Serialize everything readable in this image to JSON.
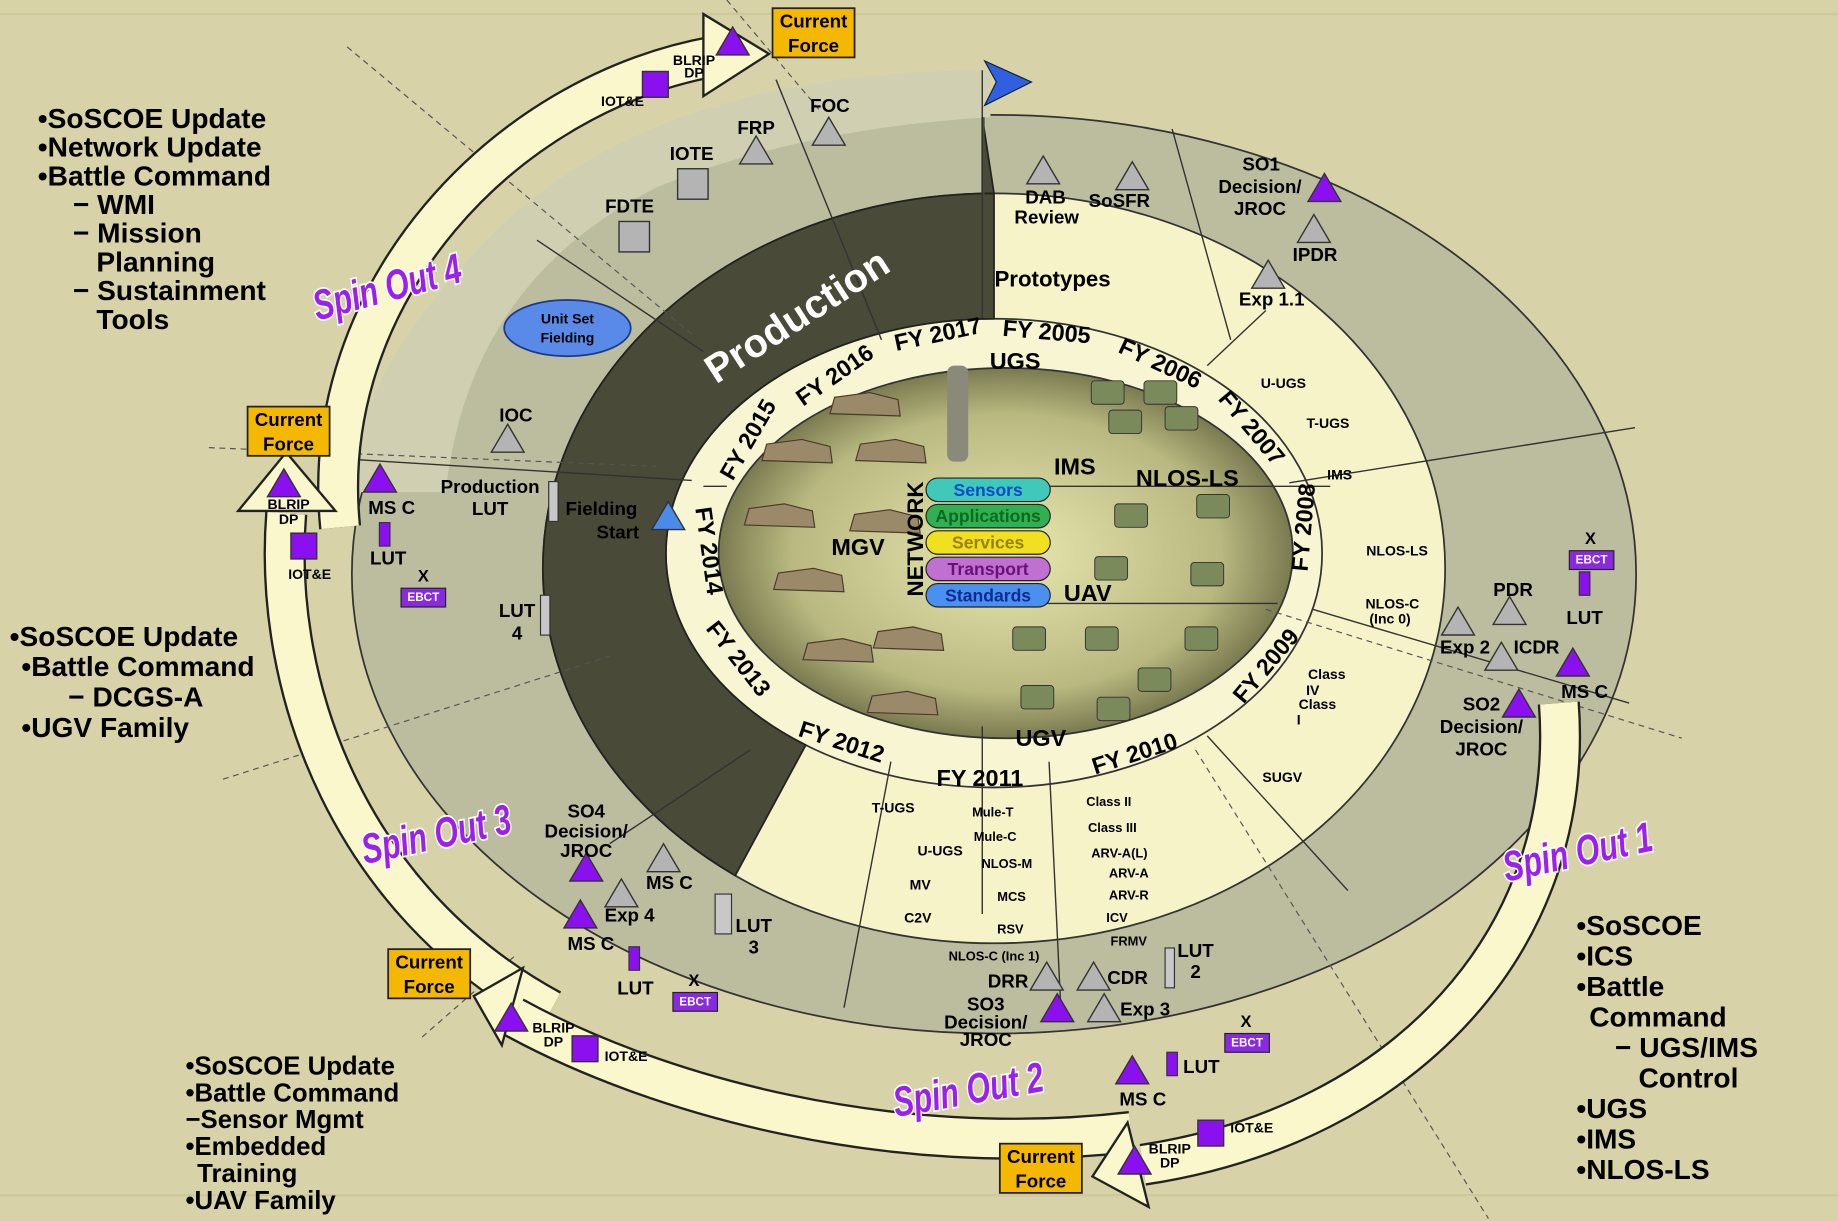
{
  "diagram": {
    "fiscal_years": [
      "FY 2005",
      "FY 2006",
      "FY 2007",
      "FY 2008",
      "FY 2009",
      "FY 2010",
      "FY 2011",
      "FY 2012",
      "FY 2013",
      "FY 2014",
      "FY 2015",
      "FY 2016",
      "FY 2017"
    ],
    "production": "Production",
    "prototypes": "Prototypes",
    "network": {
      "title": "NETWORK",
      "layers": [
        "Sensors",
        "Applications",
        "Services",
        "Transport",
        "Standards"
      ]
    },
    "quadrants": [
      "UGS",
      "IMS",
      "NLOS-LS",
      "MGV",
      "UAV",
      "UGV"
    ],
    "spin_outs": [
      "Spin Out 1",
      "Spin Out 2",
      "Spin Out 3",
      "Spin Out 4"
    ],
    "current_force_boxes": [
      [
        "Current",
        "Force"
      ],
      [
        "Current",
        "Force"
      ],
      [
        "Current",
        "Force"
      ],
      [
        "Current",
        "Force"
      ]
    ],
    "labels": [
      "FOC",
      "FRP",
      "IOTE",
      "FDTE",
      "IOC",
      "Production",
      "LUT",
      "Fielding",
      "Start",
      "LUT",
      "4",
      "MS C",
      "LUT",
      "EBCT",
      "BLRIP",
      "DP",
      "IOT&E",
      "BLRIP",
      "DP",
      "IOT&E",
      "DAB",
      "Review",
      "SoSFR",
      "SO1",
      "Decision/",
      "JROC",
      "IPDR",
      "Exp 1.1",
      "PDR",
      "Exp 2",
      "ICDR",
      "LUT",
      "EBCT",
      "MS C",
      "SO2",
      "Decision/",
      "JROC",
      "U-UGS",
      "T-UGS",
      "IMS",
      "NLOS-LS",
      "NLOS-C",
      "(Inc 0)",
      "Class",
      "IV",
      "Class",
      "I",
      "SUGV",
      "T-UGS",
      "U-UGS",
      "MV",
      "C2V",
      "Mule-T",
      "Mule-C",
      "NLOS-M",
      "MCS",
      "RSV",
      "NLOS-C (Inc 1)",
      "Class II",
      "Class III",
      "ARV-A(L)",
      "ARV-A",
      "ARV-R",
      "ICV",
      "FRMV",
      "DRR",
      "CDR",
      "LUT",
      "2",
      "SO3",
      "Decision/",
      "JROC",
      "Exp 3",
      "LUT",
      "MS C",
      "EBCT",
      "IOT&E",
      "BLRIP",
      "DP",
      "SO4",
      "Decision/",
      "JROC",
      "MS C",
      "Exp 4",
      "MS C",
      "LUT",
      "LUT",
      "3",
      "EBCT",
      "BLRIP",
      "DP",
      "IOT&E",
      "Unit Set",
      "Fielding",
      "X",
      "X",
      "X",
      "X"
    ],
    "notes": [
      [
        "•SoSCOE Update",
        "•Network Update",
        "•Battle Command",
        "− WMI",
        "− Mission",
        "Planning",
        "− Sustainment",
        "Tools"
      ],
      [
        "•SoSCOE Update",
        "•Battle Command",
        "− DCGS-A",
        "•UGV Family"
      ],
      [
        "•SoSCOE Update",
        "•Battle Command",
        "−Sensor Mgmt",
        "•Embedded",
        "Training",
        "•UAV Family"
      ],
      [
        "•SoSCOE",
        "•ICS",
        "•Battle",
        "Command",
        "− UGS/IMS",
        "Control",
        "•UGS",
        "•IMS",
        "•NLOS-LS"
      ]
    ]
  }
}
